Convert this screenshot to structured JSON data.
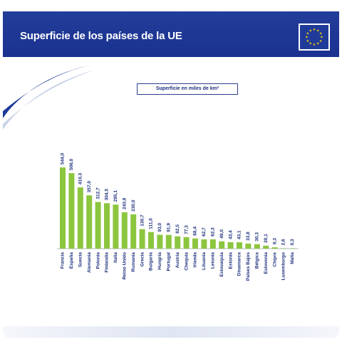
{
  "header": {
    "title": "Superficie de los países de la UE",
    "flag_icon": "eu-flag-icon",
    "colors": {
      "band": "#1f3490",
      "flag": "#1f3a99",
      "stars": "#f5d000"
    }
  },
  "chart_data": {
    "type": "bar",
    "title": "Superficie en miles de km²",
    "xlabel": "",
    "ylabel": "",
    "ylim": [
      0,
      560
    ],
    "grid": false,
    "bar_color": "#8cc63f",
    "categories": [
      "Francia",
      "España",
      "Suecia",
      "Alemania",
      "Polonia",
      "Finlandia",
      "Italia",
      "Reino Unido",
      "Rumanía",
      "Grecia",
      "Bulgaria",
      "Hungría",
      "Portugal",
      "Austria",
      "Chequia",
      "Irlanda",
      "Lituania",
      "Letonia",
      "Eslovaquia",
      "Estonia",
      "Dinamarca",
      "Países  Bajos",
      "Bélgica",
      "Eslovenia",
      "Chipre",
      "Luxemburgo",
      "Malta"
    ],
    "values": [
      544.0,
      506.0,
      410.3,
      357.0,
      312.7,
      304.5,
      295.1,
      243.8,
      230.0,
      130.7,
      111.0,
      93.0,
      91.9,
      82.5,
      77.3,
      68.4,
      62.7,
      62.3,
      49.0,
      43.4,
      43.1,
      33.8,
      30.3,
      20.1,
      9.3,
      2.6,
      0.3
    ],
    "labels": [
      "544,0",
      "506,0",
      "410,3",
      "357,0",
      "312,7",
      "304,5",
      "295,1",
      "243,8",
      "230,0",
      "130,7",
      "111,0",
      "93,0",
      "91,9",
      "82,5",
      "77,3",
      "68,4",
      "62,7",
      "62,3",
      "49,0",
      "43,4",
      "43,1",
      "33,8",
      "30,3",
      "20,1",
      "9,3",
      "2,6",
      "0,3"
    ]
  }
}
